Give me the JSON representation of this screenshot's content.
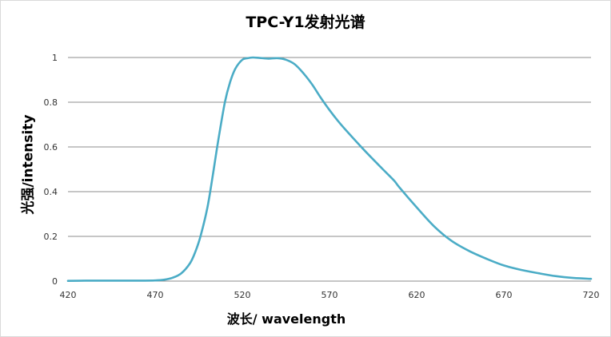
{
  "chart_data": {
    "type": "line",
    "title": "TPC-Y1发射光谱",
    "xlabel": "波长/ wavelength",
    "ylabel": "光强/intensity",
    "xlim": [
      420,
      720
    ],
    "ylim": [
      0,
      1
    ],
    "x_ticks": [
      "420",
      "470",
      "520",
      "570",
      "620",
      "670",
      "720"
    ],
    "y_ticks": [
      "0",
      "0.2",
      "0.4",
      "0.6",
      "0.8",
      "1"
    ],
    "grid": true,
    "legend": "none",
    "line_color": "#4bacc6",
    "series": [
      {
        "x": [
          420,
          430,
          440,
          450,
          460,
          470,
          475,
          480,
          485,
          490,
          493,
          496,
          500,
          503,
          506,
          510,
          513,
          516,
          520,
          523,
          526,
          530,
          535,
          540,
          545,
          550,
          555,
          560,
          565,
          570,
          575,
          580,
          590,
          600,
          607,
          610,
          620,
          630,
          640,
          650,
          660,
          670,
          680,
          690,
          700,
          710,
          720
        ],
        "values": [
          0.001,
          0.002,
          0.002,
          0.002,
          0.002,
          0.003,
          0.006,
          0.015,
          0.035,
          0.08,
          0.13,
          0.2,
          0.33,
          0.47,
          0.62,
          0.8,
          0.89,
          0.95,
          0.99,
          0.997,
          1.0,
          0.998,
          0.995,
          0.997,
          0.99,
          0.97,
          0.93,
          0.88,
          0.82,
          0.765,
          0.715,
          0.67,
          0.585,
          0.505,
          0.45,
          0.42,
          0.33,
          0.245,
          0.18,
          0.135,
          0.1,
          0.07,
          0.05,
          0.035,
          0.022,
          0.014,
          0.01
        ]
      }
    ]
  }
}
